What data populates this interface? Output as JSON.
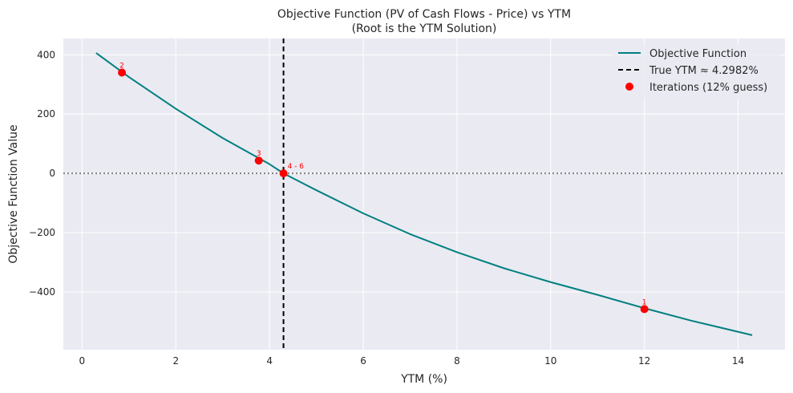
{
  "chart_data": {
    "type": "line",
    "title": "Objective Function (PV of Cash Flows - Price) vs YTM",
    "subtitle": "(Root is the YTM Solution)",
    "xlabel": "YTM (%)",
    "ylabel": "Objective Function Value",
    "xlim": [
      -0.4,
      15.0
    ],
    "ylim": [
      -595,
      455
    ],
    "x_ticks": [
      0,
      2,
      4,
      6,
      8,
      10,
      12,
      14
    ],
    "y_ticks": [
      400,
      200,
      0,
      -200,
      -400
    ],
    "y_tick_labels": [
      "400",
      "200",
      "0",
      "−200",
      "−400"
    ],
    "grid": true,
    "legend_position": "top-right",
    "series": [
      {
        "name": "Objective Function",
        "kind": "line",
        "color": "#008080",
        "x": [
          0.3,
          1.0,
          2.0,
          3.0,
          4.0,
          4.2982,
          5.0,
          6.0,
          7.0,
          8.0,
          9.0,
          10.0,
          11.0,
          12.0,
          13.0,
          14.3
        ],
        "y": [
          406,
          325,
          218,
          119,
          31,
          0,
          -57,
          -135,
          -205,
          -266,
          -320,
          -367,
          -410,
          -455,
          -497,
          -546
        ]
      },
      {
        "name": "True YTM ≈ 4.2982%",
        "kind": "vline",
        "color": "#000000",
        "x": 4.2982
      },
      {
        "name": "Iterations (12% guess)",
        "kind": "scatter",
        "color": "#ff0000",
        "x": [
          12.0,
          0.85,
          3.77,
          4.2982
        ],
        "y": [
          -458,
          340,
          43,
          0
        ],
        "labels": [
          "1",
          "2",
          "3",
          "4 - 6"
        ]
      }
    ],
    "reference_lines": [
      {
        "kind": "hline",
        "y": 0,
        "style": "dotted",
        "color": "#808080"
      }
    ]
  }
}
